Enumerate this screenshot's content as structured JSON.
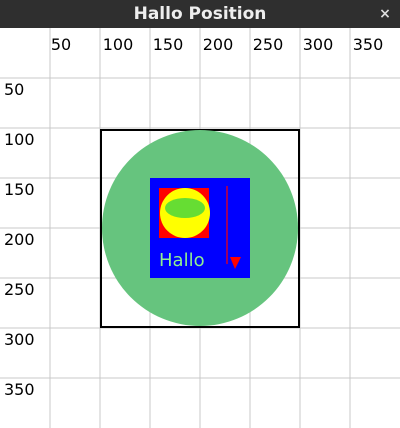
{
  "window": {
    "title": "Hallo Position",
    "close_glyph": "×"
  },
  "canvas": {
    "background": "#ffffff",
    "grid_color": "#c8c8c8",
    "x_ticks": [
      "50",
      "100",
      "150",
      "200",
      "250",
      "300",
      "350"
    ],
    "y_ticks": [
      "50",
      "100",
      "150",
      "200",
      "250",
      "300",
      "350"
    ],
    "hallo_text": "Hallo",
    "colors": {
      "frame": "#000000",
      "circle": "#66c47e",
      "blue_square": "#0000ff",
      "red_square": "#ff0000",
      "yellow_circle": "#ffff00",
      "green_ellipse": "#66dd33",
      "hallo_text": "#90ee90",
      "arrow": "#ff0000"
    },
    "icons": {
      "close": "close-icon",
      "arrow": "arrow-down-icon"
    }
  }
}
